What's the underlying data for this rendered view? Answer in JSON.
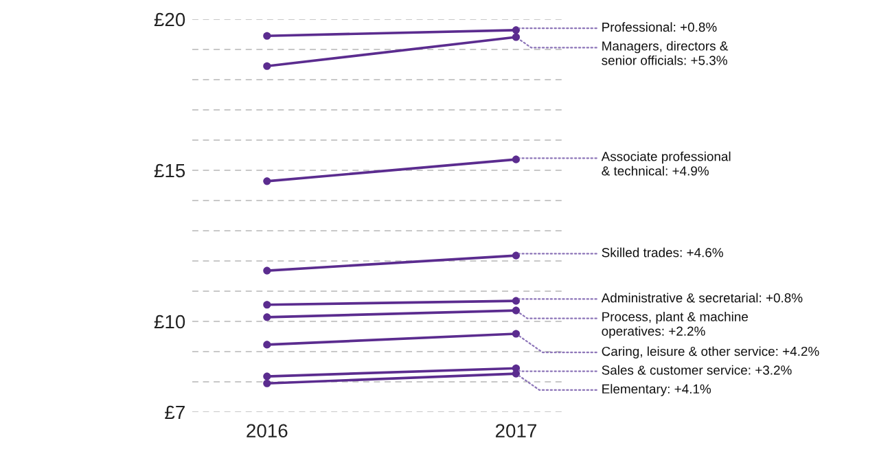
{
  "chart_data": {
    "type": "line",
    "categories": [
      "2016",
      "2017"
    ],
    "series": [
      {
        "color": "#5b2c8f",
        "values": [
          19.45,
          19.64
        ]
      },
      {
        "color": "#5b2c8f",
        "values": [
          18.45,
          19.41
        ]
      },
      {
        "color": "#5b2c8f",
        "values": [
          14.64,
          15.36
        ]
      },
      {
        "color": "#5b2c8f",
        "values": [
          11.68,
          12.18
        ]
      },
      {
        "color": "#5b2c8f",
        "values": [
          10.55,
          10.68
        ]
      },
      {
        "color": "#5b2c8f",
        "values": [
          10.14,
          10.36
        ]
      },
      {
        "color": "#5b2c8f",
        "values": [
          9.23,
          9.59
        ]
      },
      {
        "color": "#5b2c8f",
        "values": [
          8.18,
          8.45
        ]
      },
      {
        "color": "#5b2c8f",
        "values": [
          7.95,
          8.27
        ]
      }
    ],
    "annotations": [
      {
        "text": "Professional: +0.8%",
        "x": "2017",
        "y": 19.64
      },
      {
        "text": "Managers, directors &\nsenior officials: +5.3%",
        "x": "2017",
        "y": 19.41
      },
      {
        "text": "Associate professional\n& technical: +4.9%",
        "x": "2017",
        "y": 15.36
      },
      {
        "text": "Skilled trades: +4.6%",
        "x": "2017",
        "y": 12.18
      },
      {
        "text": "Administrative & secretarial: +0.8%",
        "x": "2017",
        "y": 10.68
      },
      {
        "text": "Process, plant & machine\noperatives: +2.2%",
        "x": "2017",
        "y": 10.36
      },
      {
        "text": "Caring, leisure & other service: +4.2%",
        "x": "2017",
        "y": 9.59
      },
      {
        "text": "Sales & customer service: +3.2%",
        "x": "2017",
        "y": 8.45
      },
      {
        "text": "Elementary: +4.1%",
        "x": "2017",
        "y": 8.27
      }
    ],
    "ylim": [
      7,
      20
    ],
    "yticks": [
      {
        "value": 7,
        "label": "£7"
      },
      {
        "value": 8,
        "label": null
      },
      {
        "value": 9,
        "label": null
      },
      {
        "value": 10,
        "label": "£10"
      },
      {
        "value": 11,
        "label": null
      },
      {
        "value": 12,
        "label": null
      },
      {
        "value": 13,
        "label": null
      },
      {
        "value": 14,
        "label": null
      },
      {
        "value": 15,
        "label": "£15"
      },
      {
        "value": 16,
        "label": null
      },
      {
        "value": 17,
        "label": null
      },
      {
        "value": 18,
        "label": null
      },
      {
        "value": 19,
        "label": null
      },
      {
        "value": 20,
        "label": "£20"
      }
    ],
    "grid": "y",
    "marker": "circle",
    "line_style": "solid"
  }
}
